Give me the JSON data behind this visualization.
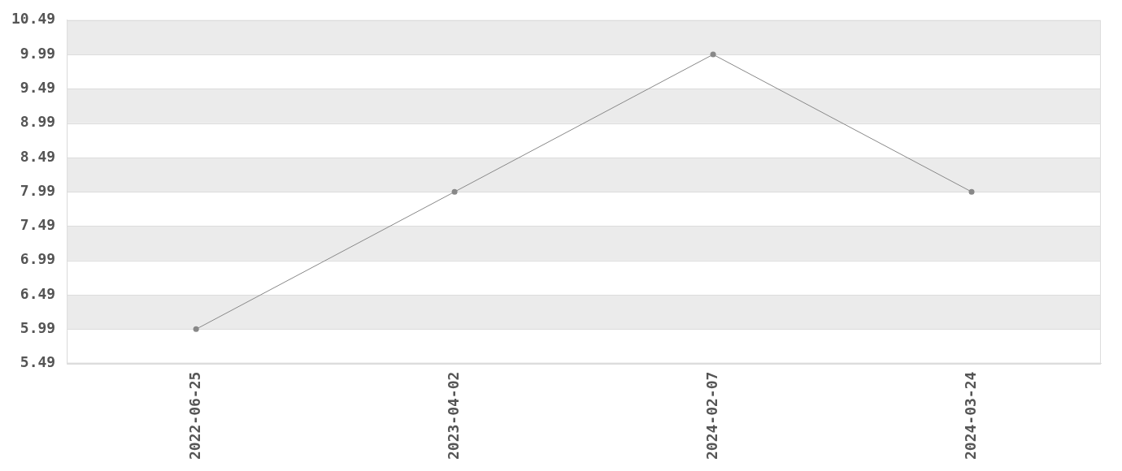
{
  "chart_data": {
    "type": "line",
    "categories": [
      "2022-06-25",
      "2023-04-02",
      "2024-02-07",
      "2024-03-24"
    ],
    "series": [
      {
        "color": "#888888",
        "values": [
          5.99,
          7.99,
          9.99,
          7.99
        ]
      }
    ],
    "ylim": [
      5.49,
      10.49
    ],
    "yticks": [
      5.49,
      5.99,
      6.49,
      6.99,
      7.49,
      7.99,
      8.49,
      8.99,
      9.49,
      9.99,
      10.49
    ],
    "grid": "y",
    "marker": "circle",
    "line_style": "solid",
    "legend": false
  }
}
